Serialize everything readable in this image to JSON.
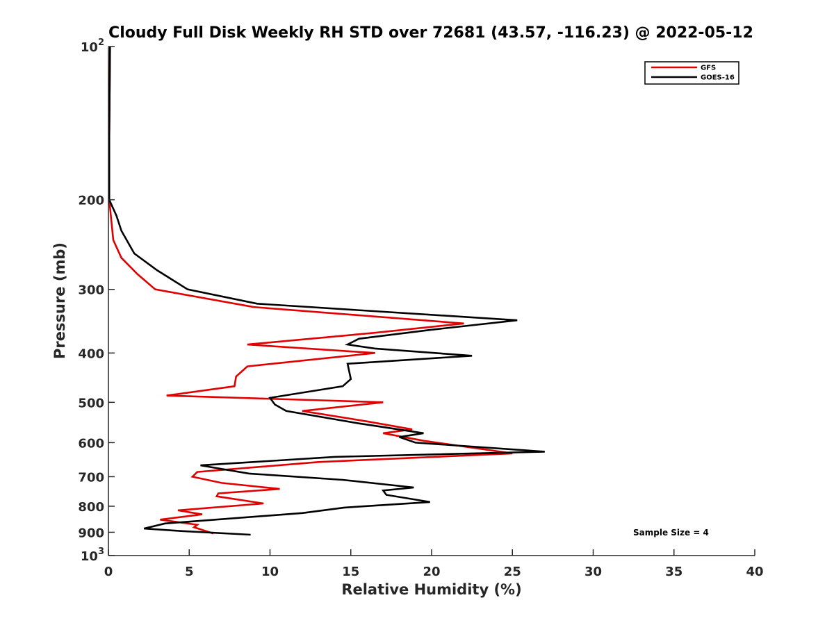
{
  "chart_data": {
    "type": "line",
    "title": "Cloudy Full Disk Weekly RH STD over 72681 (43.57, -116.23) @ 2022-05-12",
    "xlabel": "Relative Humidity (%)",
    "ylabel": "Pressure (mb)",
    "xlim": [
      0,
      40
    ],
    "ylim": [
      100,
      1000
    ],
    "y_scale": "log",
    "y_reversed": true,
    "grid": false,
    "legend_position": "top-right",
    "x_ticks": [
      0,
      5,
      10,
      15,
      20,
      25,
      30,
      35,
      40
    ],
    "x_tick_labels": [
      "0",
      "5",
      "10",
      "15",
      "20",
      "25",
      "30",
      "35",
      "40"
    ],
    "y_ticks": [
      {
        "value": 100,
        "base": "10",
        "sup": "2"
      },
      {
        "value": 200,
        "label": "200"
      },
      {
        "value": 300,
        "label": "300"
      },
      {
        "value": 400,
        "label": "400"
      },
      {
        "value": 500,
        "label": "500"
      },
      {
        "value": 600,
        "label": "600"
      },
      {
        "value": 700,
        "label": "700"
      },
      {
        "value": 800,
        "label": "800"
      },
      {
        "value": 900,
        "label": "900"
      },
      {
        "value": 1000,
        "base": "10",
        "sup": "3"
      }
    ],
    "annotation": "Sample Size = 4",
    "series": [
      {
        "name": "GFS",
        "color": "#e00000",
        "points": [
          [
            0.1,
            100
          ],
          [
            0.05,
            150
          ],
          [
            0.05,
            200
          ],
          [
            0.3,
            240
          ],
          [
            0.8,
            260
          ],
          [
            1.8,
            280
          ],
          [
            2.9,
            300
          ],
          [
            9.0,
            325
          ],
          [
            22.0,
            350
          ],
          [
            16.5,
            365
          ],
          [
            8.6,
            385
          ],
          [
            16.5,
            400
          ],
          [
            8.6,
            425
          ],
          [
            7.9,
            445
          ],
          [
            7.8,
            465
          ],
          [
            3.6,
            485
          ],
          [
            17.0,
            500
          ],
          [
            12.0,
            520
          ],
          [
            16.0,
            545
          ],
          [
            18.8,
            565
          ],
          [
            17.0,
            575
          ],
          [
            19.5,
            595
          ],
          [
            25.0,
            630
          ],
          [
            13.0,
            655
          ],
          [
            5.5,
            685
          ],
          [
            5.2,
            700
          ],
          [
            7.0,
            720
          ],
          [
            10.6,
            740
          ],
          [
            6.8,
            755
          ],
          [
            6.7,
            765
          ],
          [
            9.6,
            790
          ],
          [
            4.3,
            815
          ],
          [
            5.8,
            830
          ],
          [
            3.2,
            850
          ],
          [
            5.5,
            870
          ],
          [
            5.3,
            880
          ],
          [
            6.5,
            905
          ]
        ]
      },
      {
        "name": "GOES-16",
        "color": "#000000",
        "points": [
          [
            0.1,
            100
          ],
          [
            0.05,
            150
          ],
          [
            0.05,
            200
          ],
          [
            0.5,
            215
          ],
          [
            0.8,
            230
          ],
          [
            1.6,
            255
          ],
          [
            3.0,
            275
          ],
          [
            4.9,
            300
          ],
          [
            9.2,
            320
          ],
          [
            25.3,
            345
          ],
          [
            20.0,
            360
          ],
          [
            15.5,
            375
          ],
          [
            14.8,
            385
          ],
          [
            16.5,
            392
          ],
          [
            22.5,
            405
          ],
          [
            14.8,
            420
          ],
          [
            15.0,
            450
          ],
          [
            14.5,
            465
          ],
          [
            10.0,
            490
          ],
          [
            10.3,
            505
          ],
          [
            11.0,
            520
          ],
          [
            15.5,
            550
          ],
          [
            19.5,
            575
          ],
          [
            18.0,
            585
          ],
          [
            19.0,
            600
          ],
          [
            27.0,
            625
          ],
          [
            14.0,
            640
          ],
          [
            5.7,
            665
          ],
          [
            8.7,
            690
          ],
          [
            14.5,
            710
          ],
          [
            18.9,
            735
          ],
          [
            17.0,
            745
          ],
          [
            17.2,
            760
          ],
          [
            19.9,
            785
          ],
          [
            14.6,
            805
          ],
          [
            12.0,
            825
          ],
          [
            3.5,
            865
          ],
          [
            2.2,
            885
          ],
          [
            4.5,
            895
          ],
          [
            8.8,
            910
          ]
        ]
      }
    ]
  }
}
